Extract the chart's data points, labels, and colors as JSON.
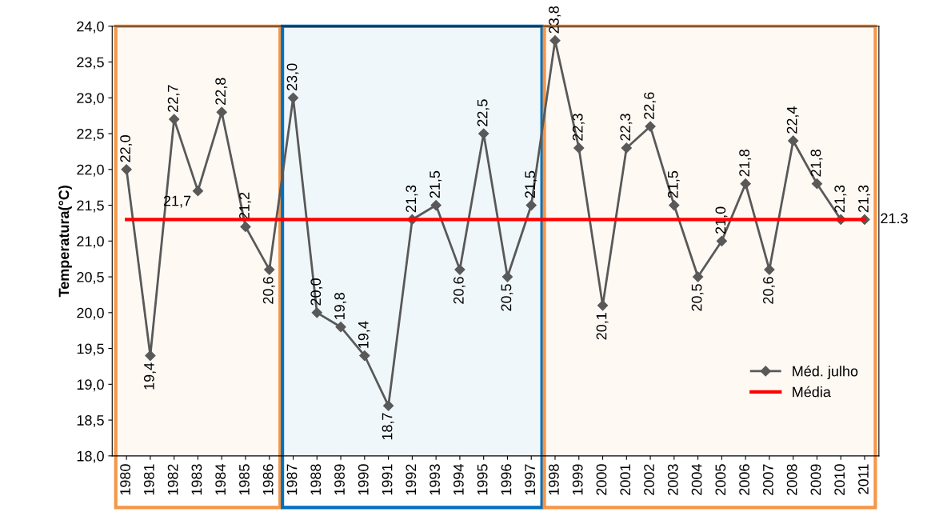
{
  "chart_data": {
    "type": "line",
    "ylabel": "Temperatura(°C)",
    "categories": [
      "1980",
      "1981",
      "1982",
      "1983",
      "1984",
      "1985",
      "1986",
      "1987",
      "1988",
      "1989",
      "1990",
      "1991",
      "1992",
      "1993",
      "1994",
      "1995",
      "1996",
      "1997",
      "1998",
      "1999",
      "2000",
      "2001",
      "2002",
      "2003",
      "2004",
      "2005",
      "2006",
      "2007",
      "2008",
      "2009",
      "2010",
      "2011"
    ],
    "series": [
      {
        "name": "Méd. julho",
        "color": "#595959",
        "marker": "diamond",
        "values": [
          22.0,
          19.4,
          22.7,
          21.7,
          22.8,
          21.2,
          20.6,
          23.0,
          20.0,
          19.8,
          19.4,
          18.7,
          21.3,
          21.5,
          20.6,
          22.5,
          20.5,
          21.5,
          23.8,
          22.3,
          20.1,
          22.3,
          22.6,
          21.5,
          20.5,
          21.0,
          21.8,
          20.6,
          22.4,
          21.8,
          21.3,
          21.3
        ],
        "value_labels": [
          "22,0",
          "19,4",
          "22,7",
          "21,7",
          "22,8",
          "21,2",
          "20,6",
          "23,0",
          "20,0",
          "19,8",
          "19,4",
          "18,7",
          "21,3",
          "21,5",
          "20,6",
          "22,5",
          "20,5",
          "21,5",
          "23,8",
          "22,3",
          "20,1",
          "22,3",
          "22,6",
          "21,5",
          "20,5",
          "21,0",
          "21,8",
          "20,6",
          "22,4",
          "21,8",
          "21,3",
          "21,3"
        ]
      },
      {
        "name": "Média",
        "color": "#ff0000",
        "marker": "none",
        "values": [
          21.3,
          21.3,
          21.3,
          21.3,
          21.3,
          21.3,
          21.3,
          21.3,
          21.3,
          21.3,
          21.3,
          21.3,
          21.3,
          21.3,
          21.3,
          21.3,
          21.3,
          21.3,
          21.3,
          21.3,
          21.3,
          21.3,
          21.3,
          21.3,
          21.3,
          21.3,
          21.3,
          21.3,
          21.3,
          21.3,
          21.3,
          21.3
        ],
        "value_labels": [
          null,
          null,
          null,
          null,
          null,
          null,
          null,
          null,
          null,
          null,
          null,
          null,
          null,
          null,
          null,
          null,
          null,
          null,
          null,
          null,
          null,
          null,
          null,
          null,
          null,
          null,
          null,
          null,
          null,
          null,
          null,
          "21.3"
        ]
      }
    ],
    "ylim": [
      18.0,
      24.0
    ],
    "yticks": [
      {
        "value": 18.0,
        "label": "18,0"
      },
      {
        "value": 18.5,
        "label": "18,5"
      },
      {
        "value": 19.0,
        "label": "19,0"
      },
      {
        "value": 19.5,
        "label": "19,5"
      },
      {
        "value": 20.0,
        "label": "20,0"
      },
      {
        "value": 20.5,
        "label": "20,5"
      },
      {
        "value": 21.0,
        "label": "21,0"
      },
      {
        "value": 21.5,
        "label": "21,5"
      },
      {
        "value": 22.0,
        "label": "22,0"
      },
      {
        "value": 22.5,
        "label": "22,5"
      },
      {
        "value": 23.0,
        "label": "23,0"
      },
      {
        "value": 23.5,
        "label": "23,5"
      },
      {
        "value": 24.0,
        "label": "24,0"
      }
    ],
    "bands": [
      {
        "axis": "x",
        "from": "1980",
        "to": "1986",
        "color": "#f79646"
      },
      {
        "axis": "x",
        "from": "1987",
        "to": "1997",
        "color": "#0070c0"
      },
      {
        "axis": "x",
        "from": "1998",
        "to": "2011",
        "color": "#f79646"
      }
    ],
    "grid": false,
    "legend": "lower right"
  }
}
